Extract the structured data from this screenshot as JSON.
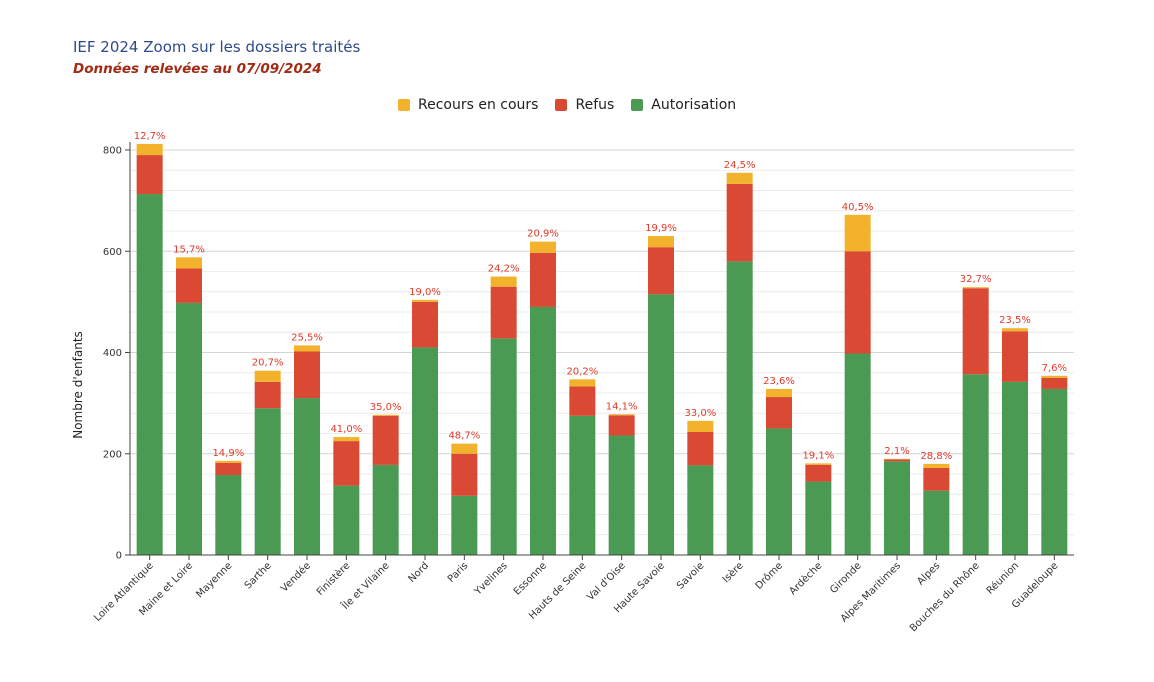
{
  "header": {
    "title": "IEF 2024 Zoom sur les dossiers traités",
    "subtitle": "Données relevées au 07/09/2024"
  },
  "colors": {
    "recours": "#f2b22c",
    "refus": "#da4934",
    "autorisation": "#4a9a53",
    "pct_label": "#e23a2a"
  },
  "chart_data": {
    "type": "bar",
    "stacked": true,
    "ylabel": "Nombre d'enfants",
    "ylim": [
      0,
      800
    ],
    "yticks": [
      0,
      200,
      400,
      600,
      800
    ],
    "grid": true,
    "legend_position": "top",
    "categories": [
      "Loire Atlantique",
      "Maine et Loire",
      "Mayenne",
      "Sarthe",
      "Vendée",
      "Finistère",
      "Île et Vilaine",
      "Nord",
      "Paris",
      "Yvelines",
      "Essonne",
      "Hauts de Seine",
      "Val d'Oise",
      "Haute Savoie",
      "Savoie",
      "Isère",
      "Drôme",
      "Ardèche",
      "Gironde",
      "Alpes Maritimes",
      "Alpes",
      "Bouches du Rhône",
      "Réunion",
      "Guadeloupe"
    ],
    "series": [
      {
        "name": "Autorisation",
        "values": [
          713,
          498,
          158,
          290,
          310,
          137,
          178,
          410,
          117,
          428,
          490,
          275,
          236,
          515,
          177,
          580,
          250,
          145,
          398,
          185,
          127,
          357,
          342,
          328
        ]
      },
      {
        "name": "Refus",
        "values": [
          77,
          68,
          24,
          52,
          92,
          88,
          97,
          90,
          83,
          102,
          107,
          58,
          40,
          93,
          66,
          153,
          62,
          33,
          202,
          4,
          45,
          170,
          100,
          22
        ]
      },
      {
        "name": "Recours en cours",
        "values": [
          22,
          22,
          4,
          22,
          12,
          8,
          2,
          4,
          20,
          20,
          22,
          14,
          2,
          22,
          22,
          22,
          16,
          3,
          72,
          1,
          8,
          2,
          6,
          4
        ]
      }
    ],
    "legend_order": [
      "Recours en cours",
      "Refus",
      "Autorisation"
    ],
    "percent_labels": [
      "12,7%",
      "15,7%",
      "14,9%",
      "20,7%",
      "25,5%",
      "41,0%",
      "35,0%",
      "19,0%",
      "48,7%",
      "24,2%",
      "20,9%",
      "20,2%",
      "14,1%",
      "19,9%",
      "33,0%",
      "24,5%",
      "23,6%",
      "19,1%",
      "40,5%",
      "2,1%",
      "28,8%",
      "32,7%",
      "23,5%",
      "7,6%"
    ]
  }
}
